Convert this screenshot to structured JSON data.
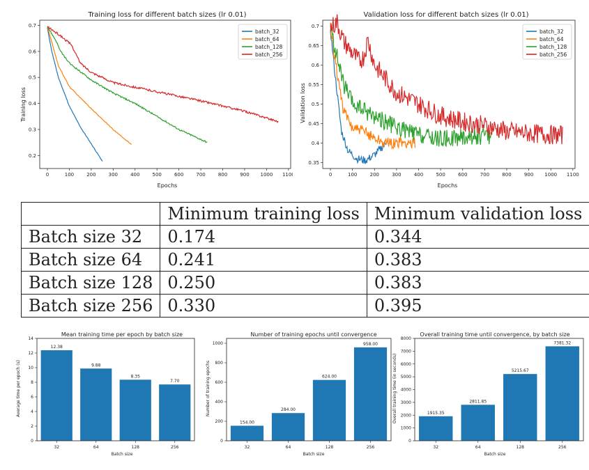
{
  "colors": {
    "blue": "#1f77b4",
    "orange": "#ff7f0e",
    "green": "#2ca02c",
    "red": "#d62728"
  },
  "chart_data": [
    {
      "type": "line",
      "title": "Training loss for different batch sizes (lr 0.01)",
      "xlabel": "Epochs",
      "ylabel": "Training loss",
      "xlim": [
        -35,
        1110
      ],
      "ylim": [
        0.15,
        0.72
      ],
      "xticks": [
        0,
        100,
        200,
        300,
        400,
        500,
        600,
        700,
        800,
        900,
        1000,
        1100
      ],
      "yticks": [
        0.2,
        0.3,
        0.4,
        0.5,
        0.6,
        0.7
      ],
      "legend": "top-right",
      "series": [
        {
          "name": "batch_32",
          "color": "#1f77b4",
          "points": [
            [
              0,
              0.69
            ],
            [
              20,
              0.6
            ],
            [
              50,
              0.5
            ],
            [
              100,
              0.39
            ],
            [
              150,
              0.31
            ],
            [
              200,
              0.245
            ],
            [
              254,
              0.174
            ]
          ]
        },
        {
          "name": "batch_64",
          "color": "#ff7f0e",
          "points": [
            [
              0,
              0.695
            ],
            [
              25,
              0.62
            ],
            [
              50,
              0.545
            ],
            [
              100,
              0.465
            ],
            [
              200,
              0.38
            ],
            [
              300,
              0.3
            ],
            [
              385,
              0.241
            ]
          ]
        },
        {
          "name": "batch_128",
          "color": "#2ca02c",
          "points": [
            [
              0,
              0.695
            ],
            [
              40,
              0.64
            ],
            [
              60,
              0.6
            ],
            [
              100,
              0.555
            ],
            [
              200,
              0.49
            ],
            [
              300,
              0.44
            ],
            [
              400,
              0.4
            ],
            [
              500,
              0.35
            ],
            [
              600,
              0.3
            ],
            [
              730,
              0.25
            ]
          ]
        },
        {
          "name": "batch_256",
          "color": "#d62728",
          "points": [
            [
              0,
              0.695
            ],
            [
              60,
              0.66
            ],
            [
              110,
              0.625
            ],
            [
              150,
              0.555
            ],
            [
              200,
              0.52
            ],
            [
              300,
              0.48
            ],
            [
              500,
              0.445
            ],
            [
              700,
              0.41
            ],
            [
              900,
              0.37
            ],
            [
              1055,
              0.33
            ]
          ]
        }
      ]
    },
    {
      "type": "line",
      "title": "Validation loss for different batch sizes (lr 0.01)",
      "xlabel": "Epochs",
      "ylabel": "Validation loss",
      "xlim": [
        -35,
        1110
      ],
      "ylim": [
        0.335,
        0.715
      ],
      "xticks": [
        0,
        100,
        200,
        300,
        400,
        500,
        600,
        700,
        800,
        900,
        1000,
        1100
      ],
      "yticks": [
        0.35,
        0.4,
        0.45,
        0.5,
        0.55,
        0.6,
        0.65,
        0.7
      ],
      "legend": "top-right",
      "series": [
        {
          "name": "batch_32",
          "color": "#1f77b4",
          "points": [
            [
              0,
              0.69
            ],
            [
              20,
              0.58
            ],
            [
              50,
              0.43
            ],
            [
              80,
              0.38
            ],
            [
              120,
              0.36
            ],
            [
              160,
              0.355
            ],
            [
              200,
              0.37
            ],
            [
              254,
              0.4
            ]
          ]
        },
        {
          "name": "batch_64",
          "color": "#ff7f0e",
          "points": [
            [
              0,
              0.695
            ],
            [
              25,
              0.6
            ],
            [
              60,
              0.48
            ],
            [
              100,
              0.44
            ],
            [
              150,
              0.43
            ],
            [
              200,
              0.415
            ],
            [
              250,
              0.4
            ],
            [
              300,
              0.4
            ],
            [
              385,
              0.4
            ]
          ]
        },
        {
          "name": "batch_128",
          "color": "#2ca02c",
          "points": [
            [
              0,
              0.695
            ],
            [
              30,
              0.62
            ],
            [
              60,
              0.55
            ],
            [
              100,
              0.5
            ],
            [
              200,
              0.47
            ],
            [
              300,
              0.44
            ],
            [
              400,
              0.42
            ],
            [
              500,
              0.41
            ],
            [
              600,
              0.415
            ],
            [
              730,
              0.42
            ]
          ]
        },
        {
          "name": "batch_256",
          "color": "#d62728",
          "points": [
            [
              0,
              0.695
            ],
            [
              30,
              0.71
            ],
            [
              60,
              0.66
            ],
            [
              100,
              0.63
            ],
            [
              130,
              0.61
            ],
            [
              150,
              0.62
            ],
            [
              170,
              0.665
            ],
            [
              200,
              0.6
            ],
            [
              300,
              0.53
            ],
            [
              400,
              0.5
            ],
            [
              500,
              0.47
            ],
            [
              600,
              0.455
            ],
            [
              700,
              0.445
            ],
            [
              800,
              0.43
            ],
            [
              900,
              0.425
            ],
            [
              1055,
              0.42
            ]
          ]
        }
      ]
    },
    {
      "type": "bar",
      "title": "Mean training time per epoch by batch size",
      "xlabel": "Batch size",
      "ylabel": "Average time per epoch (s)",
      "categories": [
        "32",
        "64",
        "128",
        "256"
      ],
      "values": [
        12.38,
        9.88,
        8.35,
        7.7
      ],
      "labels": [
        "12.38",
        "9.88",
        "8.35",
        "7.70"
      ],
      "ylim": [
        0,
        14
      ],
      "yticks": [
        0,
        2,
        4,
        6,
        8,
        10,
        12,
        14
      ]
    },
    {
      "type": "bar",
      "title": "Number of training epochs until convergence",
      "xlabel": "Batch size",
      "ylabel": "Number of training epochs",
      "categories": [
        "32",
        "64",
        "128",
        "256"
      ],
      "values": [
        154,
        284,
        624,
        958
      ],
      "labels": [
        "154.00",
        "284.00",
        "624.00",
        "958.00"
      ],
      "ylim": [
        0,
        1050
      ],
      "yticks": [
        0,
        200,
        400,
        600,
        800,
        1000
      ]
    },
    {
      "type": "bar",
      "title": "Overall training time until convergence, by batch size",
      "xlabel": "Batch size",
      "ylabel": "Overall training time (in seconds)",
      "categories": [
        "32",
        "64",
        "128",
        "256"
      ],
      "values": [
        1915.35,
        2811.85,
        5215.67,
        7381.32
      ],
      "labels": [
        "1915.35",
        "2811.85",
        "5215.67",
        "7381.32"
      ],
      "ylim": [
        0,
        8000
      ],
      "yticks": [
        0,
        1000,
        2000,
        3000,
        4000,
        5000,
        6000,
        7000,
        8000
      ]
    }
  ],
  "table": {
    "headers": [
      "",
      "Minimum training loss",
      "Minimum validation loss"
    ],
    "rows": [
      [
        "Batch size 32",
        "0.174",
        "0.344"
      ],
      [
        "Batch size 64",
        "0.241",
        "0.383"
      ],
      [
        "Batch size 128",
        "0.250",
        "0.383"
      ],
      [
        "Batch size 256",
        "0.330",
        "0.395"
      ]
    ]
  }
}
